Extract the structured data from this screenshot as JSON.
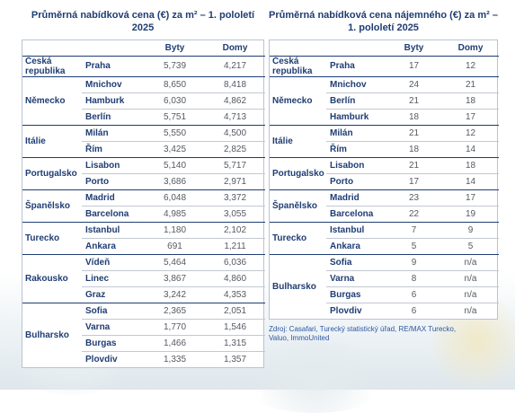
{
  "left": {
    "title": "Průměrná nabídková cena (€) za m² – 1. pololetí 2025",
    "headers": [
      "",
      "",
      "Byty",
      "Domy"
    ],
    "groups": [
      {
        "country": "Česká republika",
        "rows": [
          {
            "city": "Praha",
            "a": "5,739",
            "b": "4,217"
          }
        ]
      },
      {
        "country": "Německo",
        "rows": [
          {
            "city": "Mnichov",
            "a": "8,650",
            "b": "8,418"
          },
          {
            "city": "Hamburk",
            "a": "6,030",
            "b": "4,862"
          },
          {
            "city": "Berlín",
            "a": "5,751",
            "b": "4,713"
          }
        ]
      },
      {
        "country": "Itálie",
        "rows": [
          {
            "city": "Milán",
            "a": "5,550",
            "b": "4,500"
          },
          {
            "city": "Řím",
            "a": "3,425",
            "b": "2,825"
          }
        ]
      },
      {
        "country": "Portugalsko",
        "rows": [
          {
            "city": "Lisabon",
            "a": "5,140",
            "b": "5,717"
          },
          {
            "city": "Porto",
            "a": "3,686",
            "b": "2,971"
          }
        ]
      },
      {
        "country": "Španělsko",
        "rows": [
          {
            "city": "Madrid",
            "a": "6,048",
            "b": "3,372"
          },
          {
            "city": "Barcelona",
            "a": "4,985",
            "b": "3,055"
          }
        ]
      },
      {
        "country": "Turecko",
        "rows": [
          {
            "city": "Istanbul",
            "a": "1,180",
            "b": "2,102"
          },
          {
            "city": "Ankara",
            "a": "691",
            "b": "1,211"
          }
        ]
      },
      {
        "country": "Rakousko",
        "rows": [
          {
            "city": "Vídeň",
            "a": "5,464",
            "b": "6,036"
          },
          {
            "city": "Linec",
            "a": "3,867",
            "b": "4,860"
          },
          {
            "city": "Graz",
            "a": "3,242",
            "b": "4,353"
          }
        ]
      },
      {
        "country": "Bulharsko",
        "rows": [
          {
            "city": "Sofia",
            "a": "2,365",
            "b": "2,051"
          },
          {
            "city": "Varna",
            "a": "1,770",
            "b": "1,546"
          },
          {
            "city": "Burgas",
            "a": "1,466",
            "b": "1,315"
          },
          {
            "city": "Plovdiv",
            "a": "1,335",
            "b": "1,357"
          }
        ]
      }
    ]
  },
  "right": {
    "title": "Průměrná nabídková cena nájemného (€) za m² – 1. pololetí 2025",
    "headers": [
      "",
      "",
      "Byty",
      "Domy"
    ],
    "groups": [
      {
        "country": "Česká republika",
        "rows": [
          {
            "city": "Praha",
            "a": "17",
            "b": "12"
          }
        ]
      },
      {
        "country": "Německo",
        "rows": [
          {
            "city": "Mnichov",
            "a": "24",
            "b": "21"
          },
          {
            "city": "Berlín",
            "a": "21",
            "b": "18"
          },
          {
            "city": "Hamburk",
            "a": "18",
            "b": "17"
          }
        ]
      },
      {
        "country": "Itálie",
        "rows": [
          {
            "city": "Milán",
            "a": "21",
            "b": "12"
          },
          {
            "city": "Řím",
            "a": "18",
            "b": "14"
          }
        ]
      },
      {
        "country": "Portugalsko",
        "rows": [
          {
            "city": "Lisabon",
            "a": "21",
            "b": "18"
          },
          {
            "city": "Porto",
            "a": "17",
            "b": "14"
          }
        ]
      },
      {
        "country": "Španělsko",
        "rows": [
          {
            "city": "Madrid",
            "a": "23",
            "b": "17"
          },
          {
            "city": "Barcelona",
            "a": "22",
            "b": "19"
          }
        ]
      },
      {
        "country": "Turecko",
        "rows": [
          {
            "city": "Istanbul",
            "a": "7",
            "b": "9"
          },
          {
            "city": "Ankara",
            "a": "5",
            "b": "5"
          }
        ]
      },
      {
        "country": "Bulharsko",
        "rows": [
          {
            "city": "Sofia",
            "a": "9",
            "b": "n/a"
          },
          {
            "city": "Varna",
            "a": "8",
            "b": "n/a"
          },
          {
            "city": "Burgas",
            "a": "6",
            "b": "n/a"
          },
          {
            "city": "Plovdiv",
            "a": "6",
            "b": "n/a"
          }
        ]
      }
    ],
    "source": "Zdroj: Casafari, Turecký statistický úřad, RE/MAX Turecko, Valuo, ImmoUnited"
  }
}
